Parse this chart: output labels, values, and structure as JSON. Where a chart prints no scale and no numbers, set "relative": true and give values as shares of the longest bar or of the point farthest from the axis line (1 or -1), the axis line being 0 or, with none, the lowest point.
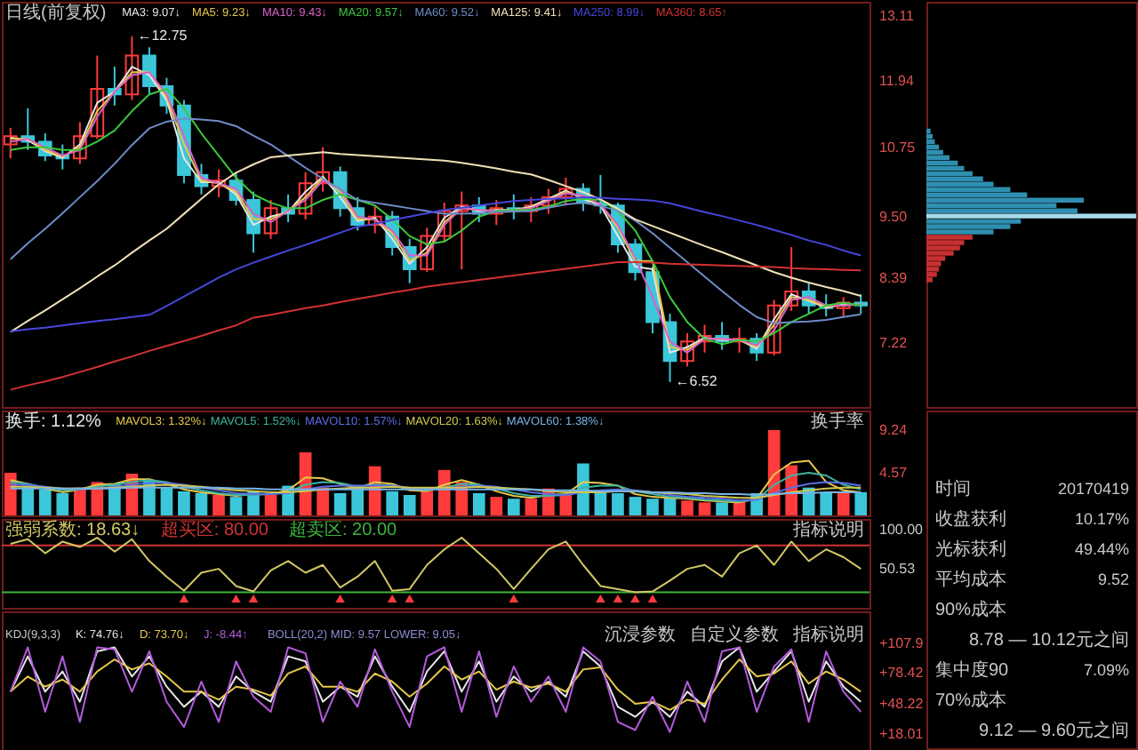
{
  "chart_data": [
    {
      "type": "candlestick",
      "title": "日线(前复权)",
      "legend": "top left",
      "tick_labels": "y",
      "categories": [
        null,
        null,
        null,
        null,
        null,
        null,
        null,
        null,
        null,
        null,
        null,
        null,
        null,
        null,
        null,
        null,
        null,
        null,
        null,
        null,
        null,
        null,
        null,
        null,
        null,
        null,
        null,
        null,
        null,
        null,
        null,
        null,
        null,
        null,
        null,
        null,
        null,
        null,
        null,
        null,
        null,
        null,
        null,
        null,
        null,
        null,
        null,
        null,
        null,
        null
      ],
      "ylim": [
        6.07,
        13.37
      ],
      "yticks": [
        13.11,
        11.94,
        10.75,
        {
          "value": 9.5,
          "label": "9.50"
        },
        8.39,
        7.22
      ],
      "ohlc": [
        [
          10.8,
          11.1,
          10.55,
          10.95
        ],
        [
          10.95,
          11.45,
          10.7,
          10.85
        ],
        [
          10.85,
          11.0,
          10.5,
          10.6
        ],
        [
          10.6,
          10.8,
          10.35,
          10.55
        ],
        [
          10.55,
          11.2,
          10.45,
          10.95
        ],
        [
          10.95,
          12.4,
          10.9,
          11.8
        ],
        [
          11.8,
          12.2,
          11.5,
          11.7
        ],
        [
          11.7,
          12.75,
          11.6,
          12.4
        ],
        [
          12.4,
          12.55,
          11.7,
          11.85
        ],
        [
          11.85,
          12.0,
          11.35,
          11.5
        ],
        [
          11.5,
          11.6,
          10.1,
          10.25
        ],
        [
          10.25,
          10.45,
          9.9,
          10.05
        ],
        [
          10.05,
          10.35,
          9.85,
          10.15
        ],
        [
          10.15,
          10.3,
          9.7,
          9.8
        ],
        [
          9.8,
          9.95,
          8.85,
          9.2
        ],
        [
          9.2,
          9.8,
          9.1,
          9.65
        ],
        [
          9.65,
          9.9,
          9.4,
          9.55
        ],
        [
          9.55,
          10.3,
          9.45,
          10.1
        ],
        [
          10.1,
          10.75,
          9.95,
          10.3
        ],
        [
          10.3,
          10.4,
          9.5,
          9.65
        ],
        [
          9.65,
          9.85,
          9.25,
          9.35
        ],
        [
          9.35,
          9.7,
          9.2,
          9.5
        ],
        [
          9.5,
          9.6,
          8.8,
          8.95
        ],
        [
          8.95,
          9.1,
          8.3,
          8.55
        ],
        [
          8.55,
          9.3,
          8.5,
          9.15
        ],
        [
          9.15,
          9.75,
          9.05,
          9.6
        ],
        [
          9.6,
          9.95,
          8.55,
          9.7
        ],
        [
          9.7,
          9.85,
          9.4,
          9.55
        ],
        [
          9.55,
          9.8,
          9.35,
          9.65
        ],
        [
          9.65,
          9.9,
          9.45,
          9.6
        ],
        [
          9.6,
          9.85,
          9.4,
          9.7
        ],
        [
          9.7,
          10.0,
          9.55,
          9.85
        ],
        [
          9.85,
          10.2,
          9.7,
          10.0
        ],
        [
          10.0,
          10.1,
          9.6,
          9.75
        ],
        [
          9.75,
          10.25,
          9.55,
          9.7
        ],
        [
          9.7,
          9.75,
          8.85,
          9.0
        ],
        [
          9.0,
          9.1,
          8.35,
          8.5
        ],
        [
          8.5,
          8.6,
          7.4,
          7.6
        ],
        [
          7.6,
          7.75,
          6.52,
          6.9
        ],
        [
          6.9,
          7.4,
          6.8,
          7.25
        ],
        [
          7.25,
          7.55,
          7.05,
          7.35
        ],
        [
          7.35,
          7.6,
          7.1,
          7.25
        ],
        [
          7.25,
          7.5,
          7.05,
          7.3
        ],
        [
          7.3,
          7.4,
          6.9,
          7.05
        ],
        [
          7.05,
          8.0,
          7.0,
          7.9
        ],
        [
          7.9,
          8.95,
          7.8,
          8.15
        ],
        [
          8.15,
          8.3,
          7.75,
          7.9
        ],
        [
          7.9,
          8.1,
          7.7,
          7.85
        ],
        [
          7.85,
          8.05,
          7.7,
          7.95
        ],
        [
          7.95,
          8.1,
          7.75,
          7.9
        ]
      ],
      "colors": [
        "#ff3b3b",
        "#3bc6d9",
        "#3bc6d9",
        "#3bc6d9",
        "#ff3b3b",
        "#ff3b3b",
        "#3bc6d9",
        "#ff3b3b",
        "#3bc6d9",
        "#3bc6d9",
        "#3bc6d9",
        "#3bc6d9",
        "#ff3b3b",
        "#3bc6d9",
        "#3bc6d9",
        "#ff3b3b",
        "#3bc6d9",
        "#ff3b3b",
        "#ff3b3b",
        "#3bc6d9",
        "#3bc6d9",
        "#ff3b3b",
        "#3bc6d9",
        "#3bc6d9",
        "#ff3b3b",
        "#ff3b3b",
        "#ff3b3b",
        "#3bc6d9",
        "#ff3b3b",
        "#3bc6d9",
        "#ff3b3b",
        "#ff3b3b",
        "#ff3b3b",
        "#3bc6d9",
        "#3bc6d9",
        "#3bc6d9",
        "#3bc6d9",
        "#3bc6d9",
        "#3bc6d9",
        "#ff3b3b",
        "#ff3b3b",
        "#3bc6d9",
        "#ff3b3b",
        "#3bc6d9",
        "#ff3b3b",
        "#ff3b3b",
        "#3bc6d9",
        "#3bc6d9",
        "#ff3b3b",
        "#3bc6d9"
      ],
      "series": [
        {
          "name": "MA3: 9.07↓",
          "type": "line",
          "color": "#e6e6e6",
          "values": [
            10.92,
            10.88,
            10.68,
            10.56,
            10.8,
            11.55,
            11.75,
            12.2,
            12.05,
            11.6,
            10.55,
            10.12,
            10.12,
            9.9,
            9.35,
            9.5,
            9.58,
            9.95,
            10.22,
            9.85,
            9.42,
            9.48,
            9.1,
            8.65,
            8.95,
            9.48,
            9.68,
            9.6,
            9.62,
            9.62,
            9.68,
            9.82,
            9.97,
            9.82,
            9.7,
            9.15,
            8.6,
            8.55,
            7.05,
            7.15,
            7.32,
            7.28,
            7.28,
            7.12,
            7.65,
            8.1,
            7.98,
            7.86,
            7.92,
            7.91
          ]
        },
        {
          "name": "MA5: 9.23↓",
          "type": "line",
          "color": "#e6c84a",
          "values": [
            10.9,
            10.9,
            10.7,
            10.58,
            10.75,
            11.4,
            11.75,
            12.1,
            12.1,
            11.65,
            10.8,
            10.15,
            10.1,
            9.95,
            9.45,
            9.45,
            9.6,
            9.85,
            10.2,
            9.95,
            9.45,
            9.45,
            9.2,
            8.7,
            8.85,
            9.4,
            9.65,
            9.62,
            9.6,
            9.62,
            9.66,
            9.8,
            9.95,
            9.85,
            9.72,
            9.3,
            8.7,
            8.7,
            7.15,
            7.1,
            7.3,
            7.3,
            7.28,
            7.15,
            7.55,
            8.05,
            8.0,
            7.88,
            7.9,
            7.92
          ]
        },
        {
          "name": "MA10: 9.43↓",
          "type": "line",
          "color": "#d860c8",
          "values": [
            10.85,
            10.9,
            10.75,
            10.6,
            10.7,
            11.3,
            11.75,
            12.05,
            12.1,
            11.7,
            10.95,
            10.2,
            10.1,
            10.0,
            9.55,
            9.4,
            9.6,
            9.8,
            10.15,
            10.0,
            9.5,
            9.45,
            9.25,
            8.8,
            8.8,
            9.35,
            9.65,
            9.62,
            9.6,
            9.62,
            9.65,
            9.78,
            9.92,
            9.88,
            9.72,
            9.35,
            8.75,
            8.05,
            7.25,
            7.05,
            7.3,
            7.3,
            7.28,
            7.18,
            7.45,
            8.0,
            8.05,
            7.9,
            7.9,
            7.92
          ]
        },
        {
          "name": "MA20: 9.57↓",
          "type": "line",
          "color": "#3cc83c",
          "values": [
            10.7,
            10.75,
            10.75,
            10.7,
            10.7,
            10.85,
            11.05,
            11.4,
            11.7,
            11.8,
            11.45,
            11.0,
            10.6,
            10.2,
            9.9,
            9.75,
            9.65,
            9.65,
            9.8,
            9.9,
            9.8,
            9.7,
            9.45,
            9.15,
            9.0,
            9.05,
            9.25,
            9.5,
            9.6,
            9.62,
            9.62,
            9.68,
            9.78,
            9.82,
            9.8,
            9.6,
            9.25,
            8.7,
            8.05,
            7.6,
            7.3,
            7.2,
            7.28,
            7.25,
            7.4,
            7.6,
            7.75,
            7.9,
            7.95,
            7.9
          ]
        },
        {
          "name": "MA60: 9.52↓",
          "type": "line",
          "color": "#6e8cc8",
          "values": [
            8.73,
            9.02,
            9.28,
            9.56,
            9.85,
            10.14,
            10.45,
            10.79,
            11.09,
            11.21,
            11.27,
            11.25,
            11.22,
            11.13,
            10.96,
            10.8,
            10.59,
            10.38,
            10.18,
            9.99,
            9.8,
            9.75,
            9.7,
            9.65,
            9.6,
            9.55,
            9.55,
            9.56,
            9.58,
            9.59,
            9.6,
            9.66,
            9.72,
            9.75,
            9.69,
            9.61,
            9.43,
            9.2,
            8.94,
            8.68,
            8.42,
            8.16,
            7.91,
            7.69,
            7.58,
            7.6,
            7.61,
            7.64,
            7.69,
            7.74
          ]
        },
        {
          "name": "MA125: 9.41↓",
          "type": "line",
          "color": "#f0e0b4",
          "values": [
            7.42,
            7.62,
            7.81,
            8.01,
            8.21,
            8.42,
            8.62,
            8.85,
            9.07,
            9.28,
            9.55,
            9.82,
            10.08,
            10.29,
            10.44,
            10.57,
            10.6,
            10.63,
            10.66,
            10.63,
            10.61,
            10.59,
            10.57,
            10.55,
            10.53,
            10.51,
            10.47,
            10.42,
            10.37,
            10.31,
            10.26,
            10.16,
            10.05,
            9.94,
            9.81,
            9.64,
            9.45,
            9.33,
            9.21,
            9.09,
            8.97,
            8.86,
            8.74,
            8.62,
            8.5,
            8.4,
            8.31,
            8.23,
            8.16,
            8.07
          ]
        },
        {
          "name": "MA250: 8.99↓",
          "type": "line",
          "color": "#4646dc",
          "values": [
            7.43,
            7.47,
            7.5,
            7.54,
            7.58,
            7.62,
            7.65,
            7.69,
            7.73,
            7.89,
            8.06,
            8.23,
            8.4,
            8.55,
            8.67,
            8.78,
            8.89,
            8.99,
            9.1,
            9.21,
            9.32,
            9.37,
            9.44,
            9.5,
            9.56,
            9.62,
            9.66,
            9.7,
            9.74,
            9.78,
            9.8,
            9.82,
            9.83,
            9.85,
            9.84,
            9.82,
            9.81,
            9.79,
            9.74,
            9.66,
            9.58,
            9.51,
            9.43,
            9.35,
            9.26,
            9.17,
            9.07,
            8.99,
            8.89,
            8.8
          ]
        },
        {
          "name": "MA360: 8.65↑",
          "type": "line",
          "color": "#d23232",
          "values": [
            6.38,
            6.46,
            6.53,
            6.61,
            6.7,
            6.79,
            6.89,
            6.98,
            7.08,
            7.17,
            7.26,
            7.35,
            7.45,
            7.54,
            7.68,
            7.73,
            7.79,
            7.85,
            7.9,
            7.96,
            8.02,
            8.07,
            8.13,
            8.18,
            8.24,
            8.28,
            8.32,
            8.36,
            8.4,
            8.44,
            8.48,
            8.52,
            8.56,
            8.6,
            8.64,
            8.68,
            8.68,
            8.67,
            8.65,
            8.64,
            8.63,
            8.62,
            8.61,
            8.6,
            8.59,
            8.57,
            8.56,
            8.55,
            8.54,
            8.53
          ]
        }
      ],
      "annotations": [
        "←12.75",
        "←6.52"
      ]
    },
    {
      "type": "bar",
      "orientation": "horizontal",
      "relative": true,
      "tick_labels": false,
      "ylim": [
        6.07,
        13.37
      ],
      "x": [
        11.1,
        11.0,
        10.9,
        10.8,
        10.7,
        10.6,
        10.5,
        10.4,
        10.3,
        10.2,
        10.1,
        10.0,
        9.9,
        9.8,
        9.7,
        9.6,
        9.5,
        9.4,
        9.3,
        9.2,
        9.1,
        9.0,
        8.9,
        8.8,
        8.7,
        8.6,
        8.5,
        8.4,
        8.3
      ],
      "values": [
        0.02,
        0.03,
        0.04,
        0.06,
        0.08,
        0.11,
        0.15,
        0.18,
        0.22,
        0.27,
        0.32,
        0.4,
        0.48,
        0.75,
        0.62,
        0.72,
        1.0,
        0.45,
        0.4,
        0.32,
        0.22,
        0.18,
        0.16,
        0.13,
        0.09,
        0.07,
        0.06,
        0.05,
        0.03
      ],
      "colors": [
        "#2f8fb0",
        "#2f8fb0",
        "#2f8fb0",
        "#2f8fb0",
        "#2f8fb0",
        "#2f8fb0",
        "#2f8fb0",
        "#2f8fb0",
        "#2f8fb0",
        "#2f8fb0",
        "#2f8fb0",
        "#2f8fb0",
        "#2f8fb0",
        "#2f8fb0",
        "#2f8fb0",
        "#2f8fb0",
        "#a8dcec",
        "#2f8fb0",
        "#2f8fb0",
        "#2f8fb0",
        "#c83030",
        "#c83030",
        "#c83030",
        "#c83030",
        "#c83030",
        "#c83030",
        "#c83030",
        "#c83030",
        "#c83030"
      ]
    },
    {
      "type": "bar",
      "legend": "top left",
      "tick_labels": "y",
      "categories": [
        null,
        null,
        null,
        null,
        null,
        null,
        null,
        null,
        null,
        null,
        null,
        null,
        null,
        null,
        null,
        null,
        null,
        null,
        null,
        null,
        null,
        null,
        null,
        null,
        null,
        null,
        null,
        null,
        null,
        null,
        null,
        null,
        null,
        null,
        null,
        null,
        null,
        null,
        null,
        null,
        null,
        null,
        null,
        null,
        null,
        null,
        null,
        null,
        null,
        null
      ],
      "ylim": [
        0,
        11.3
      ],
      "yticks": [
        9.24,
        4.57
      ],
      "series": [
        {
          "name": "换手: 1.12%",
          "type": "bar",
          "colors": [
            "#ff3b3b",
            "#3bc6d9",
            "#3bc6d9",
            "#3bc6d9",
            "#ff3b3b",
            "#ff3b3b",
            "#3bc6d9",
            "#ff3b3b",
            "#3bc6d9",
            "#3bc6d9",
            "#3bc6d9",
            "#3bc6d9",
            "#ff3b3b",
            "#3bc6d9",
            "#3bc6d9",
            "#ff3b3b",
            "#3bc6d9",
            "#ff3b3b",
            "#ff3b3b",
            "#3bc6d9",
            "#3bc6d9",
            "#ff3b3b",
            "#3bc6d9",
            "#3bc6d9",
            "#ff3b3b",
            "#ff3b3b",
            "#ff3b3b",
            "#3bc6d9",
            "#ff3b3b",
            "#3bc6d9",
            "#ff3b3b",
            "#ff3b3b",
            "#ff3b3b",
            "#3bc6d9",
            "#3bc6d9",
            "#3bc6d9",
            "#3bc6d9",
            "#3bc6d9",
            "#3bc6d9",
            "#ff3b3b",
            "#ff3b3b",
            "#3bc6d9",
            "#ff3b3b",
            "#3bc6d9",
            "#ff3b3b",
            "#ff3b3b",
            "#3bc6d9",
            "#3bc6d9",
            "#ff3b3b",
            "#3bc6d9"
          ],
          "values": [
            4.6,
            3.2,
            2.8,
            2.4,
            3.0,
            3.6,
            3.4,
            4.5,
            3.8,
            3.0,
            2.6,
            2.4,
            2.2,
            2.0,
            2.6,
            2.2,
            3.2,
            6.8,
            3.0,
            2.4,
            3.2,
            5.3,
            2.6,
            2.2,
            2.8,
            4.9,
            3.6,
            2.4,
            2.0,
            1.8,
            1.8,
            2.9,
            2.2,
            5.6,
            2.6,
            2.4,
            2.0,
            1.8,
            2.0,
            1.6,
            1.4,
            1.4,
            1.5,
            2.4,
            9.2,
            5.4,
            3.0,
            2.4,
            2.6,
            2.5
          ]
        },
        {
          "name": "MAVOL3: 1.32%↓",
          "type": "line",
          "color": "#e6c84a",
          "values": [
            3.8,
            3.4,
            2.9,
            2.5,
            2.8,
            3.3,
            3.4,
            3.9,
            3.9,
            3.4,
            2.8,
            2.5,
            2.3,
            2.1,
            2.3,
            2.3,
            2.7,
            4.1,
            4.0,
            3.4,
            2.9,
            3.6,
            3.4,
            2.7,
            2.6,
            3.3,
            3.8,
            3.3,
            2.6,
            2.1,
            1.9,
            2.2,
            2.3,
            3.6,
            3.5,
            3.2,
            2.3,
            2.0,
            1.9,
            1.8,
            1.6,
            1.5,
            1.4,
            1.8,
            4.4,
            5.7,
            5.9,
            3.6,
            2.7,
            2.5
          ]
        },
        {
          "name": "MAVOL5: 1.52%↓",
          "type": "line",
          "color": "#3cb4a0",
          "values": [
            3.6,
            3.4,
            3.0,
            2.7,
            2.8,
            3.1,
            3.3,
            3.6,
            3.8,
            3.6,
            3.1,
            2.7,
            2.4,
            2.2,
            2.2,
            2.3,
            2.5,
            3.3,
            3.6,
            3.5,
            3.1,
            3.3,
            3.2,
            2.9,
            2.7,
            3.0,
            3.4,
            3.3,
            2.9,
            2.4,
            2.1,
            2.1,
            2.2,
            3.0,
            3.2,
            3.2,
            2.6,
            2.3,
            2.0,
            1.9,
            1.7,
            1.6,
            1.5,
            1.7,
            3.3,
            4.3,
            4.6,
            4.3,
            3.3,
            2.8
          ]
        },
        {
          "name": "MAVOL10: 1.57%↓",
          "type": "line",
          "color": "#5a6ee6",
          "values": [
            3.3,
            3.3,
            3.1,
            2.9,
            2.8,
            2.9,
            3.1,
            3.3,
            3.5,
            3.5,
            3.3,
            3.0,
            2.7,
            2.4,
            2.3,
            2.3,
            2.4,
            2.8,
            3.1,
            3.2,
            3.2,
            3.2,
            3.2,
            3.0,
            2.9,
            2.9,
            3.1,
            3.2,
            3.1,
            2.8,
            2.5,
            2.3,
            2.2,
            2.5,
            2.7,
            2.8,
            2.7,
            2.5,
            2.2,
            2.0,
            1.9,
            1.8,
            1.6,
            1.7,
            2.4,
            3.0,
            3.4,
            3.6,
            3.5,
            3.2
          ]
        },
        {
          "name": "MAVOL20: 1.63%↓",
          "type": "line",
          "color": "#d2c850",
          "values": [
            3.1,
            3.1,
            3.0,
            2.9,
            2.9,
            2.9,
            3.0,
            3.1,
            3.2,
            3.3,
            3.2,
            3.1,
            2.9,
            2.7,
            2.6,
            2.5,
            2.5,
            2.6,
            2.8,
            2.9,
            3.0,
            3.0,
            3.1,
            3.0,
            3.0,
            3.0,
            3.0,
            3.1,
            3.0,
            2.9,
            2.8,
            2.6,
            2.5,
            2.5,
            2.5,
            2.6,
            2.6,
            2.5,
            2.4,
            2.3,
            2.1,
            2.0,
            1.9,
            1.9,
            2.2,
            2.5,
            2.7,
            2.9,
            3.0,
            3.0
          ]
        },
        {
          "name": "MAVOL60: 1.38%↓",
          "type": "line",
          "color": "#78b4e6",
          "values": [
            2.9,
            2.9,
            2.9,
            2.9,
            2.9,
            2.9,
            2.9,
            3.0,
            3.0,
            3.0,
            3.0,
            3.0,
            3.0,
            2.9,
            2.9,
            2.8,
            2.8,
            2.8,
            2.8,
            2.8,
            2.8,
            2.8,
            2.8,
            2.8,
            2.8,
            2.8,
            2.8,
            2.8,
            2.8,
            2.8,
            2.8,
            2.7,
            2.7,
            2.7,
            2.6,
            2.6,
            2.6,
            2.5,
            2.5,
            2.4,
            2.4,
            2.3,
            2.3,
            2.2,
            2.3,
            2.4,
            2.4,
            2.5,
            2.5,
            2.5
          ]
        }
      ],
      "annotations": [
        "换手率"
      ]
    },
    {
      "type": "line",
      "legend": "top left",
      "tick_labels": "y",
      "categories": [
        null,
        null,
        null,
        null,
        null,
        null,
        null,
        null,
        null,
        null,
        null,
        null,
        null,
        null,
        null,
        null,
        null,
        null,
        null,
        null,
        null,
        null,
        null,
        null,
        null,
        null,
        null,
        null,
        null,
        null,
        null,
        null,
        null,
        null,
        null,
        null,
        null,
        null,
        null,
        null,
        null,
        null,
        null,
        null,
        null,
        null,
        null,
        null,
        null,
        null
      ],
      "ylim": [
        0,
        114
      ],
      "yticks": [
        {
          "value": 100,
          "label": "100.00"
        },
        50.53
      ],
      "series": [
        {
          "name": "强弱系数: 18.63↓",
          "type": "line",
          "color": "#d2c864",
          "values": [
            82,
            88,
            70,
            85,
            78,
            90,
            72,
            88,
            60,
            40,
            22,
            45,
            50,
            28,
            21,
            48,
            60,
            45,
            55,
            26,
            40,
            60,
            22,
            24,
            55,
            75,
            90,
            70,
            50,
            24,
            50,
            75,
            85,
            55,
            28,
            24,
            20,
            21,
            35,
            50,
            55,
            40,
            70,
            80,
            55,
            85,
            60,
            75,
            65,
            50
          ]
        },
        {
          "type": "scatter",
          "marker": "triangle",
          "color": "#ff3b3b",
          "values": [
            null,
            null,
            null,
            null,
            null,
            null,
            null,
            null,
            null,
            null,
            12,
            null,
            null,
            12,
            12,
            null,
            null,
            null,
            null,
            12,
            null,
            null,
            12,
            12,
            null,
            null,
            null,
            null,
            null,
            12,
            null,
            null,
            null,
            null,
            12,
            12,
            12,
            12,
            null,
            null,
            null,
            null,
            null,
            null,
            null,
            null,
            null,
            null,
            null,
            null
          ]
        }
      ],
      "ref_lines": [
        {
          "axis": "y",
          "value": 80,
          "label": "超买区: 80.00",
          "color": "#d23232"
        },
        {
          "axis": "y",
          "value": 20,
          "label": "超卖区: 20.00",
          "color": "#3cb43c"
        }
      ],
      "annotations": [
        "指标说明"
      ]
    },
    {
      "type": "line",
      "legend": "top left",
      "tick_labels": "y",
      "title": "KDJ(9,3,3)",
      "subtitle": "BOLL(20,2) MID: 9.57  LOWER: 9.05↓",
      "categories": [
        null,
        null,
        null,
        null,
        null,
        null,
        null,
        null,
        null,
        null,
        null,
        null,
        null,
        null,
        null,
        null,
        null,
        null,
        null,
        null,
        null,
        null,
        null,
        null,
        null,
        null,
        null,
        null,
        null,
        null,
        null,
        null,
        null,
        null,
        null,
        null,
        null,
        null,
        null,
        null,
        null,
        null,
        null,
        null,
        null,
        null,
        null,
        null,
        null,
        null
      ],
      "ylim": [
        0.4,
        139.6
      ],
      "yticks": [
        {
          "value": 107.9,
          "label": "+107.9"
        },
        {
          "value": 78.42,
          "label": "+78.42"
        },
        {
          "value": 48.22,
          "label": "+48.22"
        },
        {
          "value": 18.01,
          "label": "+18.01"
        }
      ],
      "series": [
        {
          "name": "K: 74.76↓",
          "type": "line",
          "color": "#e6e6e6",
          "values": [
            60,
            95,
            60,
            80,
            50,
            100,
            104,
            75,
            95,
            65,
            45,
            60,
            45,
            75,
            60,
            50,
            95,
            90,
            50,
            65,
            55,
            95,
            65,
            40,
            80,
            100,
            60,
            90,
            50,
            75,
            60,
            70,
            55,
            100,
            85,
            45,
            35,
            50,
            35,
            60,
            45,
            90,
            104,
            60,
            80,
            100,
            50,
            90,
            65,
            50
          ]
        },
        {
          "name": "D: 73.70↓",
          "type": "line",
          "color": "#e6c84a",
          "values": [
            60,
            75,
            65,
            72,
            60,
            80,
            92,
            82,
            88,
            75,
            60,
            60,
            52,
            65,
            62,
            56,
            78,
            85,
            65,
            65,
            60,
            78,
            70,
            55,
            68,
            85,
            72,
            80,
            62,
            70,
            64,
            68,
            60,
            82,
            84,
            62,
            48,
            50,
            42,
            52,
            48,
            72,
            92,
            75,
            78,
            90,
            68,
            80,
            72,
            60
          ]
        },
        {
          "name": "J: -8.44↑",
          "type": "line",
          "color": "#b45adc",
          "values": [
            60,
            104,
            40,
            95,
            30,
            104,
            102,
            60,
            100,
            50,
            25,
            70,
            30,
            90,
            55,
            40,
            104,
            98,
            30,
            70,
            45,
            102,
            60,
            25,
            95,
            104,
            40,
            100,
            35,
            85,
            50,
            75,
            40,
            104,
            90,
            30,
            22,
            55,
            20,
            70,
            30,
            100,
            104,
            40,
            85,
            102,
            30,
            100,
            60,
            40
          ]
        }
      ],
      "annotations": [
        "沉浸参数",
        "自定义参数",
        "指标说明"
      ]
    },
    {
      "type": "other",
      "annotations": [
        "时间",
        "20170419",
        "收盘获利",
        "10.17%",
        "光标获利",
        "49.44%",
        "平均成本",
        "9.52",
        "90%成本",
        "8.78 — 10.12元之间",
        "集中度90",
        "7.09%",
        "70%成本",
        "9.12 — 9.60元之间"
      ]
    }
  ]
}
